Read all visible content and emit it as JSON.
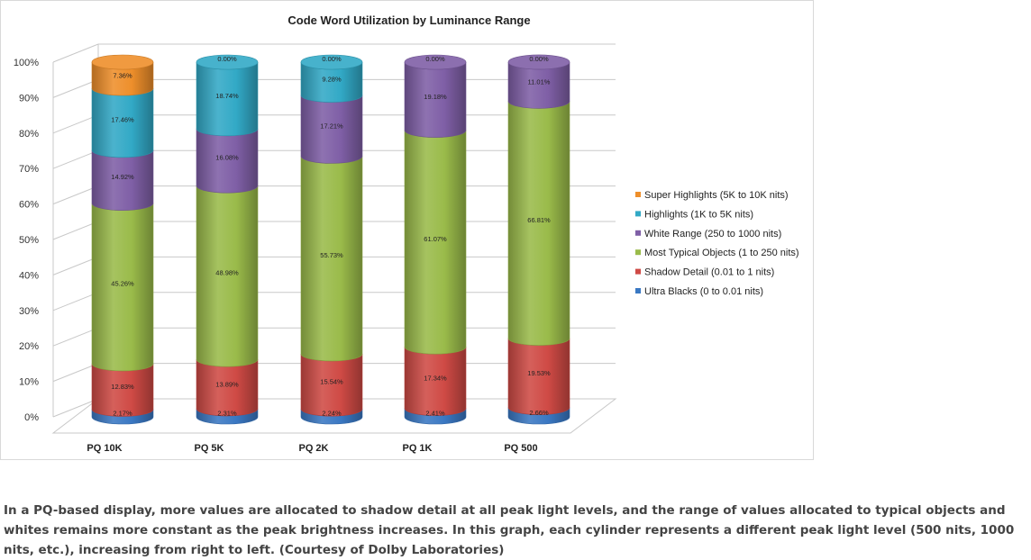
{
  "chart_data": {
    "type": "bar",
    "stacked": true,
    "style": "3d-cylinder",
    "title": "Code Word Utilization by Luminance Range",
    "xlabel": "",
    "ylabel": "",
    "ylim": [
      0,
      100
    ],
    "ytick_labels": [
      "0%",
      "10%",
      "20%",
      "30%",
      "40%",
      "50%",
      "60%",
      "70%",
      "80%",
      "90%",
      "100%"
    ],
    "grid": true,
    "legend_position": "right",
    "categories": [
      "PQ 10K",
      "PQ 5K",
      "PQ 2K",
      "PQ 1K",
      "PQ 500"
    ],
    "series": [
      {
        "name": "Ultra Blacks (0 to 0.01 nits)",
        "color": "#3a78c3",
        "values": [
          2.17,
          2.31,
          2.24,
          2.41,
          2.66
        ],
        "labels": [
          "2.17%",
          "2.31%",
          "2.24%",
          "2.41%",
          "2.66%"
        ]
      },
      {
        "name": "Shadow Detail (0.01 to 1 nits)",
        "color": "#cf4a45",
        "values": [
          12.83,
          13.89,
          15.54,
          17.34,
          19.53
        ],
        "labels": [
          "12.83%",
          "13.89%",
          "15.54%",
          "17.34%",
          "19.53%"
        ]
      },
      {
        "name": "Most Typical Objects (1 to 250 nits)",
        "color": "#9abb4a",
        "values": [
          45.26,
          48.98,
          55.73,
          61.07,
          66.81
        ],
        "labels": [
          "45.26%",
          "48.98%",
          "55.73%",
          "61.07%",
          "66.81%"
        ]
      },
      {
        "name": "White Range (250 to 1000 nits)",
        "color": "#7f5fa6",
        "values": [
          14.92,
          16.08,
          17.21,
          19.18,
          11.01
        ],
        "labels": [
          "14.92%",
          "16.08%",
          "17.21%",
          "19.18%",
          "11.01%"
        ]
      },
      {
        "name": "Highlights (1K to 5K nits)",
        "color": "#32a9c6",
        "values": [
          17.46,
          18.74,
          9.28,
          0,
          0
        ],
        "labels": [
          "17.46%",
          "18.74%",
          "9.28%",
          "",
          ""
        ]
      },
      {
        "name": "Super Highlights (5K to 10K nits)",
        "color": "#ee8f2b",
        "values": [
          7.36,
          0,
          0,
          0,
          0
        ],
        "labels": [
          "7.36%",
          "0.00%",
          "0.00%",
          "0.00%",
          "0.00%"
        ]
      }
    ],
    "legend_order": [
      5,
      4,
      3,
      2,
      1,
      0
    ]
  },
  "caption": "In a PQ-based display, more values are allocated to shadow detail at all peak light levels, and the range of values allocated to typical objects and whites remains more constant as the peak brightness increases. In this graph, each cylinder represents a different peak light level (500 nits, 1000 nits, etc.), increasing from right to left. (Courtesy of Dolby Laboratories)"
}
